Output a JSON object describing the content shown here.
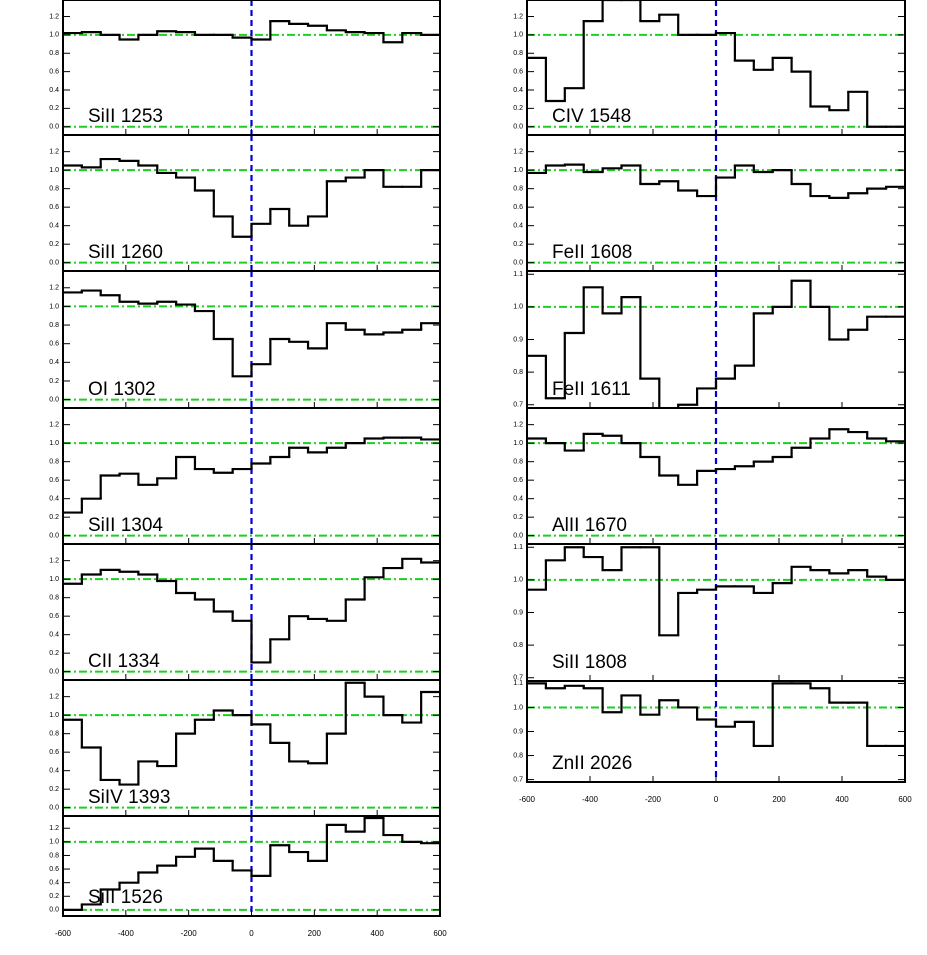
{
  "chart_data": [
    {
      "type": "step",
      "label": "SiII 1253",
      "xlim": [
        -600,
        600
      ],
      "xticks": [
        -600,
        -400,
        -200,
        0,
        200,
        400,
        600
      ],
      "show_xtick_labels": false,
      "ylim": [
        -0.09,
        1.38
      ],
      "yticks": [
        {
          "value": 0,
          "label": "0.0"
        },
        0.2,
        0.4,
        0.6,
        0.8,
        {
          "value": 1,
          "label": "1.0"
        },
        1.2
      ],
      "reference_lines": [
        0,
        1
      ],
      "velocity_marker": 0,
      "color": "#000000",
      "x": [
        -570,
        -510,
        -450,
        -390,
        -330,
        -270,
        -210,
        -150,
        -90,
        -30,
        30,
        90,
        150,
        210,
        270,
        330,
        390,
        450,
        510,
        570
      ],
      "values": [
        1.02,
        1.03,
        1.0,
        0.95,
        1.0,
        1.04,
        1.03,
        1.0,
        1.0,
        0.97,
        0.95,
        1.15,
        1.12,
        1.1,
        1.05,
        1.03,
        1.02,
        0.92,
        1.02,
        1.0
      ]
    },
    {
      "type": "step",
      "label": "SiII 1260",
      "xlim": [
        -600,
        600
      ],
      "xticks": [
        -600,
        -400,
        -200,
        0,
        200,
        400,
        600
      ],
      "show_xtick_labels": false,
      "ylim": [
        -0.09,
        1.38
      ],
      "yticks": [
        {
          "value": 0,
          "label": "0.0"
        },
        0.2,
        0.4,
        0.6,
        0.8,
        {
          "value": 1,
          "label": "1.0"
        },
        1.2
      ],
      "reference_lines": [
        0,
        1
      ],
      "velocity_marker": 0,
      "color": "#000000",
      "x": [
        -570,
        -510,
        -450,
        -390,
        -330,
        -270,
        -210,
        -150,
        -90,
        -30,
        30,
        90,
        150,
        210,
        270,
        330,
        390,
        450,
        510,
        570
      ],
      "values": [
        1.05,
        1.03,
        1.12,
        1.1,
        1.05,
        0.97,
        0.92,
        0.78,
        0.5,
        0.28,
        0.42,
        0.58,
        0.4,
        0.5,
        0.88,
        0.92,
        1.0,
        0.82,
        0.82,
        1.0
      ]
    },
    {
      "type": "step",
      "label": "OI 1302",
      "xlim": [
        -600,
        600
      ],
      "xticks": [
        -600,
        -400,
        -200,
        0,
        200,
        400,
        600
      ],
      "show_xtick_labels": false,
      "ylim": [
        -0.09,
        1.38
      ],
      "yticks": [
        {
          "value": 0,
          "label": "0.0"
        },
        0.2,
        0.4,
        0.6,
        0.8,
        {
          "value": 1,
          "label": "1.0"
        },
        1.2
      ],
      "reference_lines": [
        0,
        1
      ],
      "velocity_marker": 0,
      "color": "#000000",
      "x": [
        -570,
        -510,
        -450,
        -390,
        -330,
        -270,
        -210,
        -150,
        -90,
        -30,
        30,
        90,
        150,
        210,
        270,
        330,
        390,
        450,
        510,
        570
      ],
      "values": [
        1.15,
        1.17,
        1.12,
        1.05,
        1.03,
        1.05,
        1.02,
        0.95,
        0.65,
        0.25,
        0.38,
        0.65,
        0.62,
        0.55,
        0.82,
        0.75,
        0.7,
        0.72,
        0.75,
        0.82
      ]
    },
    {
      "type": "step",
      "label": "SiII 1304",
      "xlim": [
        -600,
        600
      ],
      "xticks": [
        -600,
        -400,
        -200,
        0,
        200,
        400,
        600
      ],
      "show_xtick_labels": false,
      "ylim": [
        -0.09,
        1.38
      ],
      "yticks": [
        {
          "value": 0,
          "label": "0.0"
        },
        0.2,
        0.4,
        0.6,
        0.8,
        {
          "value": 1,
          "label": "1.0"
        },
        1.2
      ],
      "reference_lines": [
        0,
        1
      ],
      "velocity_marker": 0,
      "color": "#000000",
      "x": [
        -570,
        -510,
        -450,
        -390,
        -330,
        -270,
        -210,
        -150,
        -90,
        -30,
        30,
        90,
        150,
        210,
        270,
        330,
        390,
        450,
        510,
        570
      ],
      "values": [
        0.25,
        0.4,
        0.65,
        0.67,
        0.55,
        0.62,
        0.85,
        0.72,
        0.68,
        0.72,
        0.78,
        0.85,
        0.95,
        0.9,
        0.95,
        1.0,
        1.05,
        1.06,
        1.06,
        1.04
      ]
    },
    {
      "type": "step",
      "label": "CII 1334",
      "xlim": [
        -600,
        600
      ],
      "xticks": [
        -600,
        -400,
        -200,
        0,
        200,
        400,
        600
      ],
      "show_xtick_labels": false,
      "ylim": [
        -0.09,
        1.38
      ],
      "yticks": [
        {
          "value": 0,
          "label": "0.0"
        },
        0.2,
        0.4,
        0.6,
        0.8,
        {
          "value": 1,
          "label": "1.0"
        },
        1.2
      ],
      "reference_lines": [
        0,
        1
      ],
      "velocity_marker": 0,
      "color": "#000000",
      "x": [
        -570,
        -510,
        -450,
        -390,
        -330,
        -270,
        -210,
        -150,
        -90,
        -30,
        30,
        90,
        150,
        210,
        270,
        330,
        390,
        450,
        510,
        570
      ],
      "values": [
        0.95,
        1.05,
        1.1,
        1.08,
        1.05,
        0.98,
        0.85,
        0.78,
        0.65,
        0.55,
        0.1,
        0.35,
        0.6,
        0.57,
        0.55,
        0.78,
        1.02,
        1.12,
        1.22,
        1.18
      ]
    },
    {
      "type": "step",
      "label": "SiIV 1393",
      "xlim": [
        -600,
        600
      ],
      "xticks": [
        -600,
        -400,
        -200,
        0,
        200,
        400,
        600
      ],
      "show_xtick_labels": false,
      "ylim": [
        -0.09,
        1.38
      ],
      "yticks": [
        {
          "value": 0,
          "label": "0.0"
        },
        0.2,
        0.4,
        0.6,
        0.8,
        {
          "value": 1,
          "label": "1.0"
        },
        1.2
      ],
      "reference_lines": [
        0,
        1
      ],
      "velocity_marker": 0,
      "color": "#000000",
      "x": [
        -570,
        -510,
        -450,
        -390,
        -330,
        -270,
        -210,
        -150,
        -90,
        -30,
        30,
        90,
        150,
        210,
        270,
        330,
        390,
        450,
        510,
        570
      ],
      "values": [
        0.95,
        0.65,
        0.3,
        0.25,
        0.5,
        0.45,
        0.8,
        0.95,
        1.05,
        1.0,
        0.9,
        0.7,
        0.5,
        0.48,
        0.8,
        1.35,
        1.2,
        1.0,
        0.92,
        1.25
      ]
    },
    {
      "type": "step",
      "label": "SiII 1526",
      "xlim": [
        -600,
        600
      ],
      "xticks": [
        -600,
        -400,
        -200,
        0,
        200,
        400,
        600
      ],
      "show_xtick_labels": true,
      "ylim": [
        -0.09,
        1.38
      ],
      "yticks": [
        {
          "value": 0,
          "label": "0.0"
        },
        0.2,
        0.4,
        0.6,
        0.8,
        {
          "value": 1,
          "label": "1.0"
        },
        1.2
      ],
      "reference_lines": [
        0,
        1
      ],
      "velocity_marker": 0,
      "color": "#000000",
      "x": [
        -570,
        -510,
        -450,
        -390,
        -330,
        -270,
        -210,
        -150,
        -90,
        -30,
        30,
        90,
        150,
        210,
        270,
        330,
        390,
        450,
        510,
        570
      ],
      "values": [
        0.0,
        0.08,
        0.3,
        0.4,
        0.55,
        0.65,
        0.78,
        0.9,
        0.72,
        0.58,
        0.5,
        0.95,
        0.85,
        0.72,
        1.25,
        1.15,
        1.35,
        1.1,
        1.0,
        0.98
      ]
    },
    {
      "type": "step",
      "label": "CIV 1548",
      "xlim": [
        -600,
        600
      ],
      "xticks": [
        -600,
        -400,
        -200,
        0,
        200,
        400,
        600
      ],
      "show_xtick_labels": false,
      "ylim": [
        -0.09,
        1.38
      ],
      "yticks": [
        {
          "value": 0,
          "label": "0.0"
        },
        0.2,
        0.4,
        0.6,
        0.8,
        {
          "value": 1,
          "label": "1.0"
        },
        1.2
      ],
      "reference_lines": [
        0,
        1
      ],
      "velocity_marker": 0,
      "color": "#000000",
      "x": [
        -570,
        -510,
        -450,
        -390,
        -330,
        -270,
        -210,
        -150,
        -90,
        -30,
        30,
        90,
        150,
        210,
        270,
        330,
        390,
        450,
        510,
        570
      ],
      "values": [
        0.75,
        0.28,
        0.42,
        1.15,
        1.38,
        1.38,
        1.15,
        1.22,
        1.0,
        1.0,
        1.02,
        0.72,
        0.62,
        0.75,
        0.6,
        0.22,
        0.18,
        0.38,
        0.0,
        0.0
      ]
    },
    {
      "type": "step",
      "label": "FeII 1608",
      "xlim": [
        -600,
        600
      ],
      "xticks": [
        -600,
        -400,
        -200,
        0,
        200,
        400,
        600
      ],
      "show_xtick_labels": false,
      "ylim": [
        -0.09,
        1.38
      ],
      "yticks": [
        {
          "value": 0,
          "label": "0.0"
        },
        0.2,
        0.4,
        0.6,
        0.8,
        {
          "value": 1,
          "label": "1.0"
        },
        1.2
      ],
      "reference_lines": [
        0,
        1
      ],
      "velocity_marker": 0,
      "color": "#000000",
      "x": [
        -570,
        -510,
        -450,
        -390,
        -330,
        -270,
        -210,
        -150,
        -90,
        -30,
        30,
        90,
        150,
        210,
        270,
        330,
        390,
        450,
        510,
        570
      ],
      "values": [
        0.97,
        1.05,
        1.06,
        0.98,
        1.02,
        1.05,
        0.85,
        0.88,
        0.78,
        0.72,
        0.92,
        1.05,
        0.98,
        1.0,
        0.85,
        0.72,
        0.7,
        0.75,
        0.8,
        0.82
      ]
    },
    {
      "type": "step",
      "label": "FeII 1611",
      "xlim": [
        -600,
        600
      ],
      "xticks": [
        -600,
        -400,
        -200,
        0,
        200,
        400,
        600
      ],
      "show_xtick_labels": false,
      "ylim": [
        0.69,
        1.11
      ],
      "yticks": [
        0.7,
        0.8,
        0.9,
        {
          "value": 1,
          "label": "1.0"
        },
        1.1
      ],
      "reference_lines": [
        1
      ],
      "velocity_marker": 0,
      "color": "#000000",
      "x": [
        -570,
        -510,
        -450,
        -390,
        -330,
        -270,
        -210,
        -150,
        -90,
        -30,
        30,
        90,
        150,
        210,
        270,
        330,
        390,
        450,
        510,
        570
      ],
      "values": [
        0.85,
        0.72,
        0.92,
        1.06,
        0.98,
        1.03,
        0.78,
        0.68,
        0.7,
        0.75,
        0.78,
        0.82,
        0.98,
        1.0,
        1.08,
        1.0,
        0.9,
        0.93,
        0.97,
        0.97
      ]
    },
    {
      "type": "step",
      "label": "AlII 1670",
      "xlim": [
        -600,
        600
      ],
      "xticks": [
        -600,
        -400,
        -200,
        0,
        200,
        400,
        600
      ],
      "show_xtick_labels": false,
      "ylim": [
        -0.09,
        1.38
      ],
      "yticks": [
        {
          "value": 0,
          "label": "0.0"
        },
        0.2,
        0.4,
        0.6,
        0.8,
        {
          "value": 1,
          "label": "1.0"
        },
        1.2
      ],
      "reference_lines": [
        0,
        1
      ],
      "velocity_marker": 0,
      "color": "#000000",
      "x": [
        -570,
        -510,
        -450,
        -390,
        -330,
        -270,
        -210,
        -150,
        -90,
        -30,
        30,
        90,
        150,
        210,
        270,
        330,
        390,
        450,
        510,
        570
      ],
      "values": [
        1.05,
        1.0,
        0.92,
        1.1,
        1.08,
        1.0,
        0.85,
        0.65,
        0.55,
        0.7,
        0.72,
        0.75,
        0.8,
        0.85,
        0.95,
        1.05,
        1.15,
        1.12,
        1.05,
        1.02
      ]
    },
    {
      "type": "step",
      "label": "SiII 1808",
      "xlim": [
        -600,
        600
      ],
      "xticks": [
        -600,
        -400,
        -200,
        0,
        200,
        400,
        600
      ],
      "show_xtick_labels": false,
      "ylim": [
        0.69,
        1.11
      ],
      "yticks": [
        0.7,
        0.8,
        0.9,
        {
          "value": 1,
          "label": "1.0"
        },
        1.1
      ],
      "reference_lines": [
        1
      ],
      "velocity_marker": 0,
      "color": "#000000",
      "x": [
        -570,
        -510,
        -450,
        -390,
        -330,
        -270,
        -210,
        -150,
        -90,
        -30,
        30,
        90,
        150,
        210,
        270,
        330,
        390,
        450,
        510,
        570
      ],
      "values": [
        0.97,
        1.06,
        1.1,
        1.07,
        1.03,
        1.1,
        1.1,
        0.83,
        0.96,
        0.97,
        0.98,
        0.98,
        0.96,
        0.99,
        1.04,
        1.03,
        1.02,
        1.03,
        1.01,
        1.0
      ]
    },
    {
      "type": "step",
      "label": "ZnII 2026",
      "xlim": [
        -600,
        600
      ],
      "xticks": [
        -600,
        -400,
        -200,
        0,
        200,
        400,
        600
      ],
      "show_xtick_labels": true,
      "ylim": [
        0.69,
        1.11
      ],
      "yticks": [
        0.7,
        0.8,
        0.9,
        {
          "value": 1,
          "label": "1.0"
        },
        1.1
      ],
      "reference_lines": [
        1
      ],
      "velocity_marker": 0,
      "color": "#000000",
      "x": [
        -570,
        -510,
        -450,
        -390,
        -330,
        -270,
        -210,
        -150,
        -90,
        -30,
        30,
        90,
        150,
        210,
        270,
        330,
        390,
        450,
        510,
        570
      ],
      "values": [
        1.1,
        1.08,
        1.09,
        1.08,
        0.98,
        1.05,
        0.97,
        1.03,
        1.0,
        0.95,
        0.92,
        0.94,
        0.84,
        1.1,
        1.1,
        1.08,
        1.02,
        1.02,
        0.84,
        0.84
      ]
    }
  ]
}
